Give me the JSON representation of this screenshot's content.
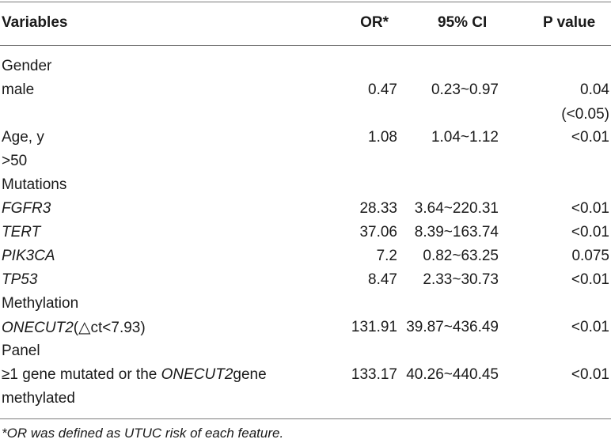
{
  "table": {
    "headers": {
      "variables": "Variables",
      "or": "OR*",
      "ci": "95% CI",
      "p": "P value"
    },
    "rows": {
      "gender": {
        "label": "Gender"
      },
      "male": {
        "label": "male",
        "or": "0.47",
        "ci": "0.23~0.97",
        "p": "0.04",
        "p2": "(<0.05)"
      },
      "age": {
        "label": "Age, y",
        "or": "1.08",
        "ci": "1.04~1.12",
        "p": "<0.01"
      },
      "age_gt50": {
        "label": ">50"
      },
      "mutations": {
        "label": "Mutations"
      },
      "fgfr3": {
        "label": "FGFR3",
        "or": "28.33",
        "ci": "3.64~220.31",
        "p": "<0.01"
      },
      "tert": {
        "label": "TERT",
        "or": "37.06",
        "ci": "8.39~163.74",
        "p": "<0.01"
      },
      "pik3ca": {
        "label": "PIK3CA",
        "or": "7.2",
        "ci": "0.82~63.25",
        "p": "0.075"
      },
      "tp53": {
        "label": "TP53",
        "or": "8.47",
        "ci": "2.33~30.73",
        "p": "<0.01"
      },
      "methylation": {
        "label": "Methylation"
      },
      "onecut2": {
        "gene": "ONECUT2",
        "open": "(",
        "tri": "△",
        "rest": "ct<7.93)",
        "or": "131.91",
        "ci": "39.87~436.49",
        "p": "<0.01"
      },
      "panel": {
        "label": "Panel"
      },
      "panel_row": {
        "line1_a": "≥1 gene mutated or the ",
        "line1_gene": "ONECUT2",
        "line1_b": "gene",
        "line2": "methylated",
        "or": "133.17",
        "ci": "40.26~440.45",
        "p": "<0.01"
      }
    },
    "footnote": "*OR was defined as UTUC risk of each feature."
  }
}
